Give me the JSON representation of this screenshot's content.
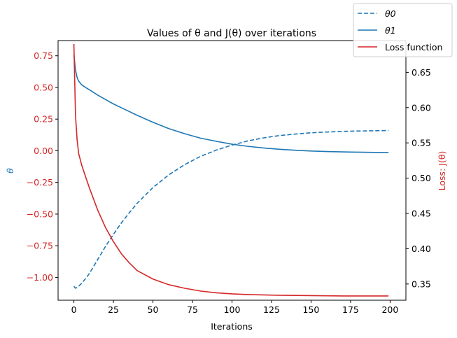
{
  "chart_data": {
    "type": "line",
    "title": "Values of θ and J(θ) over iterations",
    "xlabel": "Iterations",
    "ylabel_left": "θ",
    "ylabel_right": "Loss: J(θ)",
    "xlim": [
      -10,
      210
    ],
    "ylim_left": [
      -1.18,
      0.87
    ],
    "ylim_right": [
      0.327,
      0.695
    ],
    "x_ticks": [
      0,
      25,
      50,
      75,
      100,
      125,
      150,
      175,
      200
    ],
    "y_ticks_left": [
      0.75,
      0.5,
      0.25,
      0.0,
      -0.25,
      -0.5,
      -0.75,
      -1.0
    ],
    "y_tick_labels_left": [
      "0.75",
      "0.50",
      "0.25",
      "0.00",
      "−0.25",
      "−0.50",
      "−0.75",
      "−1.00"
    ],
    "y_ticks_right": [
      0.65,
      0.6,
      0.55,
      0.5,
      0.45,
      0.4,
      0.35
    ],
    "y_tick_labels_right": [
      "0.65",
      "0.60",
      "0.55",
      "0.50",
      "0.45",
      "0.40",
      "0.35"
    ],
    "legend_position": "top-right",
    "colors": {
      "theta": "#1f77b4",
      "loss": "#d62728",
      "axis_left": "#d62728"
    },
    "series": [
      {
        "name": "θ0",
        "axis": "left",
        "style": "dashed",
        "color": "#1f77b4",
        "points": [
          [
            0,
            -1.07
          ],
          [
            1,
            -1.085
          ],
          [
            2,
            -1.08
          ],
          [
            3,
            -1.07
          ],
          [
            5,
            -1.045
          ],
          [
            8,
            -1.0
          ],
          [
            10,
            -0.965
          ],
          [
            15,
            -0.86
          ],
          [
            20,
            -0.755
          ],
          [
            25,
            -0.66
          ],
          [
            30,
            -0.57
          ],
          [
            35,
            -0.49
          ],
          [
            40,
            -0.415
          ],
          [
            50,
            -0.29
          ],
          [
            60,
            -0.19
          ],
          [
            70,
            -0.11
          ],
          [
            80,
            -0.045
          ],
          [
            90,
            0.005
          ],
          [
            100,
            0.045
          ],
          [
            110,
            0.078
          ],
          [
            120,
            0.102
          ],
          [
            130,
            0.12
          ],
          [
            140,
            0.132
          ],
          [
            150,
            0.142
          ],
          [
            160,
            0.148
          ],
          [
            170,
            0.153
          ],
          [
            180,
            0.156
          ],
          [
            190,
            0.158
          ],
          [
            199,
            0.16
          ]
        ]
      },
      {
        "name": "θ1",
        "axis": "left",
        "style": "solid",
        "color": "#1f77b4",
        "points": [
          [
            0,
            0.76
          ],
          [
            1,
            0.64
          ],
          [
            2,
            0.58
          ],
          [
            3,
            0.55
          ],
          [
            5,
            0.52
          ],
          [
            8,
            0.495
          ],
          [
            10,
            0.48
          ],
          [
            15,
            0.44
          ],
          [
            20,
            0.405
          ],
          [
            25,
            0.37
          ],
          [
            30,
            0.34
          ],
          [
            40,
            0.28
          ],
          [
            50,
            0.225
          ],
          [
            60,
            0.175
          ],
          [
            70,
            0.135
          ],
          [
            80,
            0.1
          ],
          [
            90,
            0.075
          ],
          [
            100,
            0.052
          ],
          [
            110,
            0.035
          ],
          [
            120,
            0.022
          ],
          [
            130,
            0.012
          ],
          [
            140,
            0.004
          ],
          [
            150,
            -0.002
          ],
          [
            160,
            -0.006
          ],
          [
            170,
            -0.009
          ],
          [
            180,
            -0.011
          ],
          [
            190,
            -0.013
          ],
          [
            199,
            -0.014
          ]
        ]
      },
      {
        "name": "Loss function",
        "axis": "right",
        "style": "solid",
        "color": "#d62728",
        "points": [
          [
            0,
            0.69
          ],
          [
            1,
            0.59
          ],
          [
            2,
            0.555
          ],
          [
            3,
            0.535
          ],
          [
            5,
            0.518
          ],
          [
            8,
            0.498
          ],
          [
            10,
            0.485
          ],
          [
            15,
            0.455
          ],
          [
            20,
            0.43
          ],
          [
            25,
            0.41
          ],
          [
            30,
            0.393
          ],
          [
            35,
            0.38
          ],
          [
            40,
            0.369
          ],
          [
            50,
            0.357
          ],
          [
            60,
            0.349
          ],
          [
            70,
            0.344
          ],
          [
            80,
            0.34
          ],
          [
            90,
            0.3375
          ],
          [
            100,
            0.336
          ],
          [
            110,
            0.335
          ],
          [
            120,
            0.3345
          ],
          [
            130,
            0.334
          ],
          [
            150,
            0.3335
          ],
          [
            170,
            0.333
          ],
          [
            199,
            0.333
          ]
        ]
      }
    ]
  }
}
